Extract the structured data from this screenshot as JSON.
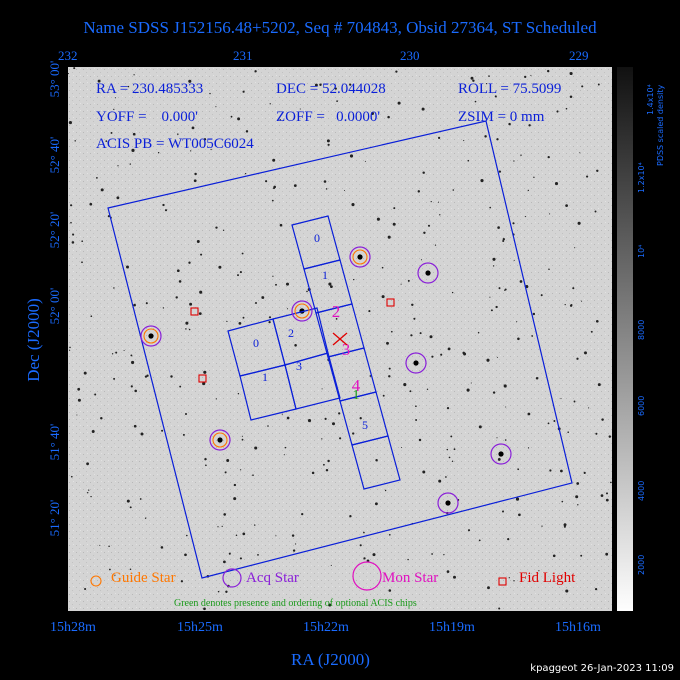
{
  "header": {
    "title": "Name SDSS J152156.48+5202, Seq # 704843, Obsid 27364, ST Scheduled"
  },
  "axes": {
    "top_ticks": [
      "232",
      "231",
      "230",
      "229"
    ],
    "bottom_ticks": [
      "15h28m",
      "15h25m",
      "15h22m",
      "15h19m",
      "15h16m"
    ],
    "left_ticks": [
      "53° 00'",
      "52° 40'",
      "52° 20'",
      "52° 00'",
      "51° 40'",
      "51° 20'"
    ],
    "xlabel": "RA (J2000)",
    "ylabel": "Dec (J2000)"
  },
  "info": {
    "ra": "RA = 230.485333",
    "dec": "DEC = 52.044028",
    "roll": "ROLL = 75.5099",
    "yoff": "YOFF =    0.000'",
    "zoff": "ZOFF =   0.0000'",
    "zsim": "ZSIM = 0 mm",
    "acis": "ACIS PB = WT005C6024"
  },
  "chips": {
    "i_labels": [
      "0",
      "2",
      "1",
      "3"
    ],
    "s_labels": [
      "0",
      "1",
      "2",
      "3",
      "4",
      "5"
    ],
    "optional_label": "1"
  },
  "legend": {
    "guide": "Guide Star",
    "acq": "Acq Star",
    "mon": "Mon Star",
    "fid": "Fid Light",
    "note": "Green denotes presence and ordering of optional ACIS chips"
  },
  "colorbar": {
    "title": "PDSS scaled density",
    "ticks": [
      "2000",
      "4000",
      "6000",
      "8000",
      "10⁴",
      "1.2x10⁴",
      "1.4x10⁴"
    ]
  },
  "colors": {
    "blue": "#0a1fd8",
    "guide": "#ff7700",
    "acq": "#8a20d8",
    "mon": "#e010c0",
    "fid": "#e00000",
    "optional": "#1a9a1a"
  },
  "footer": {
    "text": "kpaggeot 26-Jan-2023 11:09"
  }
}
